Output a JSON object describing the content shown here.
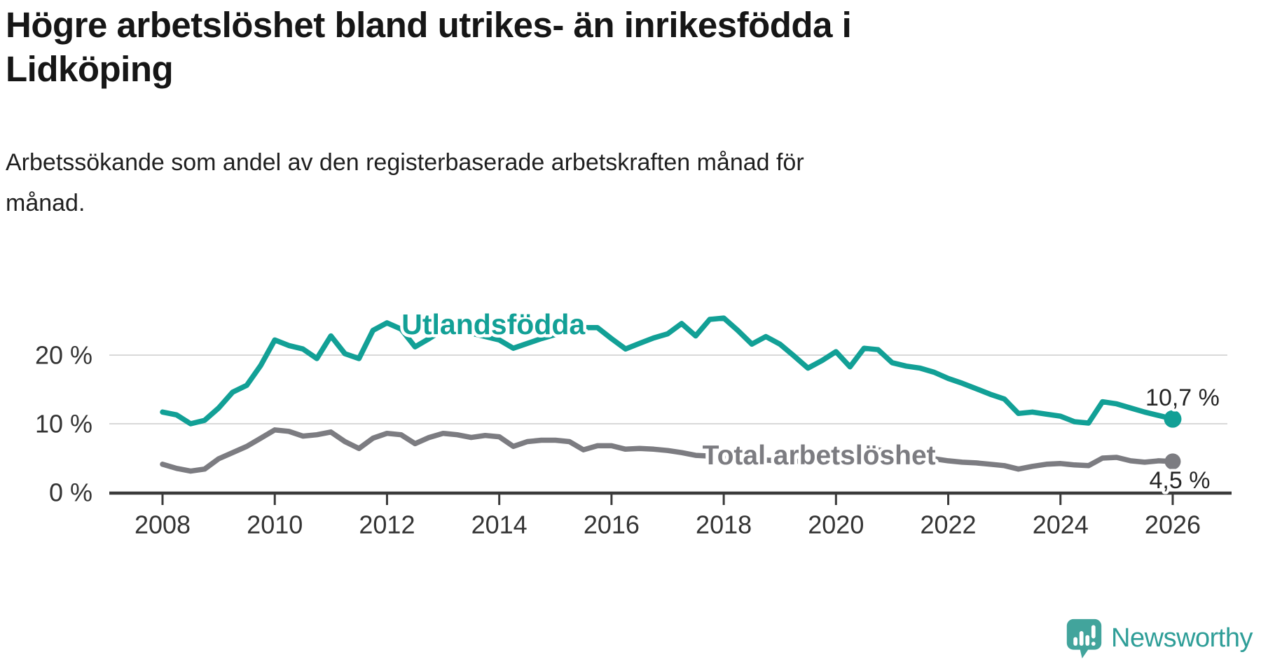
{
  "header": {
    "title": "Högre arbetslöshet bland utrikes- än inrikesfödda i\nLidköping",
    "subtitle": "Arbetssökande som andel av den registerbaserade arbetskraften månad för\nmånad."
  },
  "footer": {
    "brand": "Newsworthy"
  },
  "colors": {
    "accent_teal": "#12a096",
    "series_gray": "#7c7c81",
    "axis": "#3a3a3a",
    "gridline": "#d9d9d9",
    "text_dark": "#1f1f1f",
    "logo_teal": "#42a49c"
  },
  "chart_data": {
    "type": "line",
    "title": "Högre arbetslöshet bland utrikes- än inrikesfödda i Lidköping",
    "subtitle": "Arbetssökande som andel av den registerbaserade arbetskraften månad för månad.",
    "unit": "%",
    "x_start": 2008.0,
    "x_step_years": 0.25,
    "xlim_years": [
      2007.05,
      2027.1
    ],
    "ylim": [
      0,
      27
    ],
    "grid": "horizontal",
    "legend": "inline-labels",
    "x_ticks": [
      2008,
      2010,
      2012,
      2014,
      2016,
      2018,
      2020,
      2022,
      2024,
      2026
    ],
    "y_ticks": [
      {
        "value": 0,
        "label": "0 %"
      },
      {
        "value": 10,
        "label": "10 %"
      },
      {
        "value": 20,
        "label": "20 %"
      }
    ],
    "series": [
      {
        "name": "Utlandsfödda",
        "color": "#12a096",
        "end_label": "10,7 %",
        "end_value": 10.7,
        "label_anchor": {
          "year": 2012.26,
          "value": 24.5
        },
        "values": [
          11.7,
          11.3,
          10.0,
          10.5,
          12.3,
          14.6,
          15.6,
          18.5,
          22.2,
          21.4,
          20.9,
          19.5,
          22.8,
          20.2,
          19.5,
          23.6,
          24.7,
          23.8,
          21.2,
          22.4,
          23.7,
          24.0,
          23.2,
          22.7,
          22.2,
          21.0,
          21.7,
          22.4,
          23.0,
          23.6,
          24.0,
          24.0,
          22.4,
          20.9,
          21.7,
          22.5,
          23.1,
          24.6,
          22.8,
          25.2,
          25.4,
          23.6,
          21.6,
          22.7,
          21.6,
          19.9,
          18.1,
          19.2,
          20.5,
          18.3,
          21.0,
          20.8,
          18.9,
          18.4,
          18.1,
          17.5,
          16.6,
          15.9,
          15.1,
          14.3,
          13.6,
          11.5,
          11.7,
          11.4,
          11.1,
          10.3,
          10.1,
          13.2,
          12.9,
          12.3,
          11.7,
          11.2,
          10.7
        ]
      },
      {
        "name": "Total arbetslöshet",
        "color": "#7c7c81",
        "end_label": "4,5 %",
        "end_value": 4.5,
        "label_anchor": {
          "year": 2017.62,
          "value": 5.38
        },
        "values": [
          4.1,
          3.5,
          3.1,
          3.4,
          4.9,
          5.8,
          6.7,
          7.9,
          9.1,
          8.9,
          8.2,
          8.4,
          8.8,
          7.4,
          6.4,
          7.9,
          8.6,
          8.4,
          7.1,
          8.0,
          8.6,
          8.4,
          8.0,
          8.3,
          8.1,
          6.7,
          7.4,
          7.6,
          7.6,
          7.4,
          6.2,
          6.8,
          6.8,
          6.3,
          6.4,
          6.3,
          6.1,
          5.8,
          5.4,
          5.3,
          5.2,
          5.0,
          4.8,
          4.7,
          4.6,
          4.5,
          4.6,
          4.8,
          5.0,
          5.8,
          6.3,
          6.2,
          5.9,
          5.5,
          5.2,
          4.9,
          4.6,
          4.4,
          4.3,
          4.1,
          3.9,
          3.4,
          3.8,
          4.1,
          4.2,
          4.0,
          3.9,
          5.0,
          5.1,
          4.6,
          4.4,
          4.6,
          4.5
        ]
      }
    ]
  }
}
